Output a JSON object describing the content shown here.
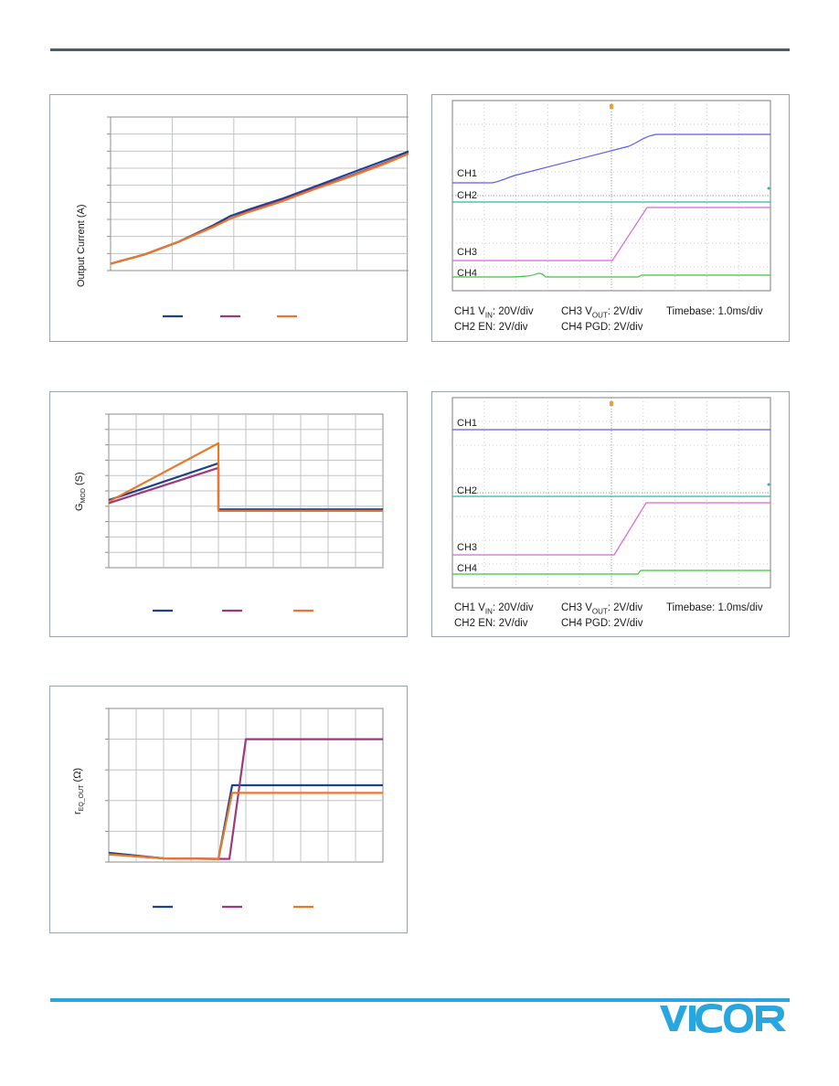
{
  "chart_data": [
    {
      "type": "line",
      "ylabel": "Output Current (A)",
      "legend_placement": "bottom",
      "grid": true,
      "series": [
        {
          "color": "#1f3f8f",
          "x": [
            0,
            0.5,
            1,
            1.5,
            1.75,
            2,
            2.5,
            3,
            3.5,
            4,
            4.5
          ],
          "y": [
            0.9,
            1.45,
            2.2,
            3.15,
            3.7,
            4.05,
            4.7,
            5.45,
            6.2,
            6.95,
            7.7
          ]
        },
        {
          "color": "#9b3b7a",
          "x": [
            0,
            0.5,
            1,
            1.5,
            1.75,
            2,
            2.5,
            3,
            3.5,
            4,
            4.5
          ],
          "y": [
            0.9,
            1.45,
            2.2,
            3.1,
            3.55,
            3.95,
            4.6,
            5.35,
            6.05,
            6.8,
            7.6
          ]
        },
        {
          "color": "#e8792a",
          "x": [
            0,
            0.5,
            1,
            1.5,
            1.75,
            2,
            2.5,
            3,
            3.5,
            4,
            4.5
          ],
          "y": [
            0.9,
            1.45,
            2.2,
            3.05,
            3.55,
            3.9,
            4.55,
            5.3,
            6.0,
            6.75,
            7.6
          ]
        }
      ],
      "xlim": [
        0,
        4.5
      ],
      "ylim": [
        0.5,
        9.5
      ]
    },
    {
      "type": "line",
      "ylabel_main": "G",
      "ylabel_sub": "MOD",
      "ylabel_unit": " (S)",
      "legend_placement": "bottom",
      "grid": true,
      "series": [
        {
          "color": "#1f3f8f",
          "x": [
            0,
            4,
            4,
            10
          ],
          "y": [
            4.4,
            6.8,
            3.8,
            3.8
          ]
        },
        {
          "color": "#9b3b7a",
          "x": [
            0,
            4,
            4,
            10
          ],
          "y": [
            4.2,
            6.5,
            3.7,
            3.7
          ]
        },
        {
          "color": "#e8792a",
          "x": [
            0,
            4,
            4,
            10
          ],
          "y": [
            4.3,
            8.1,
            3.7,
            3.7
          ]
        }
      ],
      "xlim": [
        0,
        10
      ],
      "ylim": [
        0,
        10
      ]
    },
    {
      "type": "line",
      "ylabel_main": "r",
      "ylabel_sub": "EQ_OUT",
      "ylabel_unit": " (Ω)",
      "legend_placement": "bottom",
      "grid": true,
      "series": [
        {
          "color": "#1f3f8f",
          "x": [
            0,
            2,
            4,
            4.5,
            10
          ],
          "y": [
            0.3,
            0.12,
            0.1,
            2.5,
            2.5
          ]
        },
        {
          "color": "#9b3b7a",
          "x": [
            0,
            2,
            4.4,
            5,
            10
          ],
          "y": [
            0.25,
            0.12,
            0.1,
            4.0,
            4.0
          ]
        },
        {
          "color": "#e8792a",
          "x": [
            0,
            2,
            4,
            4.5,
            10
          ],
          "y": [
            0.25,
            0.12,
            0.1,
            2.25,
            2.25
          ]
        }
      ],
      "xlim": [
        0,
        10
      ],
      "ylim": [
        0,
        5
      ]
    }
  ],
  "scope1": {
    "channels": {
      "ch1": "CH1",
      "ch2": "CH2",
      "ch3": "CH3",
      "ch4": "CH4"
    },
    "caption": {
      "ch1_pre": "CH1 V",
      "ch1_sub": "IN",
      "ch1_post": ": 20V/div",
      "ch3_pre": "CH3 V",
      "ch3_sub": "OUT",
      "ch3_post": ": 2V/div",
      "timebase": "Timebase: 1.0ms/div",
      "ch2": "CH2 EN: 2V/div",
      "ch4": "CH4 PGD: 2V/div"
    },
    "trace_colors": {
      "ch1": "#5b5ee8",
      "ch2": "#2ab8b0",
      "ch3": "#d667d6",
      "ch4": "#3ec83e"
    }
  },
  "scope2": {
    "channels": {
      "ch1": "CH1",
      "ch2": "CH2",
      "ch3": "CH3",
      "ch4": "CH4"
    },
    "caption": {
      "ch1_pre": "CH1 V",
      "ch1_sub": "IN",
      "ch1_post": ": 20V/div",
      "ch3_pre": "CH3 V",
      "ch3_sub": "OUT",
      "ch3_post": ": 2V/div",
      "timebase": "Timebase: 1.0ms/div",
      "ch2": "CH2 EN: 2V/div",
      "ch4": "CH4 PGD: 2V/div"
    },
    "trace_colors": {
      "ch1": "#5b5ee8",
      "ch2": "#2ab8b0",
      "ch3": "#d667d6",
      "ch4": "#3ec83e"
    }
  },
  "brand": {
    "logo_text": "VICOR",
    "color": "#29a6de"
  }
}
